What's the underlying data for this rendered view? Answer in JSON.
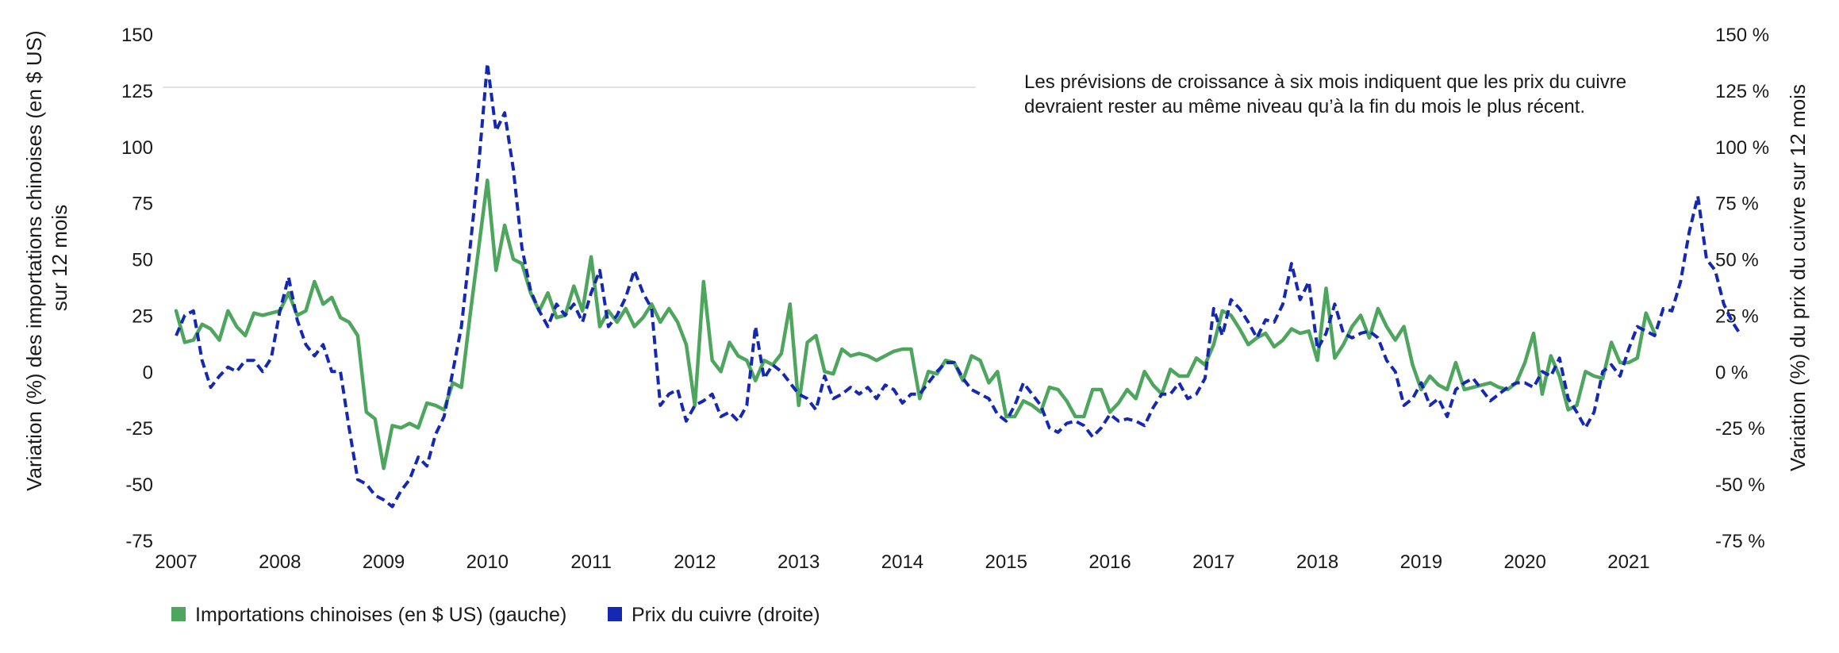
{
  "chart_data": {
    "type": "line",
    "title": "",
    "annotation": [
      "Les prévisions de croissance à six mois indiquent que les prix du cuivre",
      "devraient rester au même niveau qu’à la fin du mois le plus récent."
    ],
    "ylabel_left": [
      "Variation (%) des importations chinoises (en $ US)",
      "sur 12 mois"
    ],
    "ylabel_right": "Variation (%) du prix du cuivre sur 12 mois",
    "ylim_left": [
      -75,
      150
    ],
    "ylim_right": [
      -75,
      150
    ],
    "yticks_left": [
      "150",
      "125",
      "100",
      "75",
      "50",
      "25",
      "0",
      "-25",
      "-50",
      "-75"
    ],
    "yticks_right": [
      "150 %",
      "125 %",
      "100 %",
      "75 %",
      "50 %",
      "25 %",
      "0 %",
      "-25 %",
      "-50 %",
      "-75 %"
    ],
    "xlim": [
      2007,
      2021.75
    ],
    "xticks": [
      "2007",
      "2008",
      "2009",
      "2010",
      "2011",
      "2012",
      "2013",
      "2014",
      "2015",
      "2016",
      "2017",
      "2018",
      "2019",
      "2020",
      "2021"
    ],
    "grid": false,
    "legend_position": "bottom-left",
    "series": [
      {
        "name": "Importations chinoises (en $ US) (gauche)",
        "color": "#4ea65e",
        "style": "solid",
        "axis": "left",
        "x_start": 2007.0,
        "x_step_months": 1,
        "values": [
          27,
          13,
          14,
          21,
          19,
          14,
          27,
          20,
          16,
          26,
          25,
          26,
          27,
          35,
          25,
          27,
          40,
          30,
          33,
          24,
          22,
          16,
          -18,
          -21,
          -43,
          -24,
          -25,
          -23,
          -25,
          -14,
          -15,
          -17,
          -5,
          -7,
          25,
          55,
          85,
          45,
          65,
          50,
          48,
          35,
          27,
          35,
          24,
          25,
          38,
          27,
          51,
          20,
          27,
          22,
          28,
          20,
          24,
          30,
          22,
          28,
          22,
          12,
          -15,
          40,
          5,
          0,
          13,
          7,
          5,
          -4,
          5,
          3,
          8,
          30,
          -15,
          13,
          16,
          0,
          -1,
          10,
          7,
          8,
          7,
          5,
          7,
          9,
          10,
          10,
          -12,
          0,
          -1,
          5,
          4,
          -4,
          7,
          5,
          -5,
          0,
          -20,
          -20,
          -13,
          -15,
          -18,
          -7,
          -8,
          -13,
          -20,
          -20,
          -8,
          -8,
          -18,
          -14,
          -8,
          -12,
          0,
          -6,
          -10,
          1,
          -2,
          -2,
          6,
          3,
          12,
          27,
          25,
          19,
          12,
          15,
          17,
          11,
          14,
          19,
          17,
          18,
          5,
          37,
          6,
          12,
          20,
          25,
          15,
          28,
          20,
          14,
          20,
          3,
          -8,
          -2,
          -6,
          -8,
          4,
          -8,
          -7,
          -6,
          -5,
          -7,
          -8,
          -5,
          4,
          17,
          -10,
          7,
          -2,
          -17,
          -15,
          0,
          -2,
          -3,
          13,
          4,
          4,
          6,
          26,
          17
        ]
      },
      {
        "name": "Prix du cuivre (droite)",
        "color": "#1428b4",
        "style": "dashed",
        "axis": "right",
        "x_start": 2007.0,
        "x_step_months": 1,
        "values": [
          16,
          25,
          27,
          5,
          -7,
          -2,
          2,
          0,
          5,
          5,
          0,
          6,
          27,
          42,
          23,
          12,
          7,
          12,
          0,
          0,
          -25,
          -48,
          -50,
          -55,
          -57,
          -60,
          -53,
          -48,
          -38,
          -42,
          -28,
          -20,
          0,
          20,
          55,
          92,
          137,
          107,
          115,
          90,
          55,
          36,
          27,
          20,
          30,
          25,
          30,
          22,
          35,
          45,
          20,
          25,
          33,
          45,
          35,
          28,
          -15,
          -10,
          -8,
          -22,
          -15,
          -13,
          -10,
          -20,
          -18,
          -22,
          -15,
          20,
          -3,
          3,
          0,
          -5,
          -10,
          -12,
          -17,
          -2,
          -12,
          -10,
          -7,
          -10,
          -7,
          -12,
          -6,
          -8,
          -14,
          -10,
          -10,
          -5,
          0,
          4,
          4,
          -3,
          -8,
          -10,
          -12,
          -19,
          -22,
          -15,
          -5,
          -10,
          -15,
          -25,
          -27,
          -23,
          -22,
          -24,
          -29,
          -25,
          -19,
          -22,
          -21,
          -22,
          -24,
          -16,
          -10,
          -10,
          -5,
          -12,
          -10,
          -3,
          28,
          16,
          32,
          28,
          22,
          15,
          23,
          22,
          30,
          48,
          32,
          40,
          10,
          17,
          30,
          17,
          15,
          17,
          18,
          15,
          5,
          0,
          -15,
          -12,
          -5,
          -15,
          -12,
          -20,
          -8,
          -5,
          -3,
          -8,
          -13,
          -10,
          -7,
          -5,
          -5,
          -7,
          0,
          -2,
          6,
          -12,
          -18,
          -25,
          -18,
          0,
          3,
          -2,
          10,
          20,
          18,
          16,
          28,
          27,
          40,
          62,
          78,
          50,
          45,
          30,
          22,
          16
        ]
      }
    ]
  }
}
